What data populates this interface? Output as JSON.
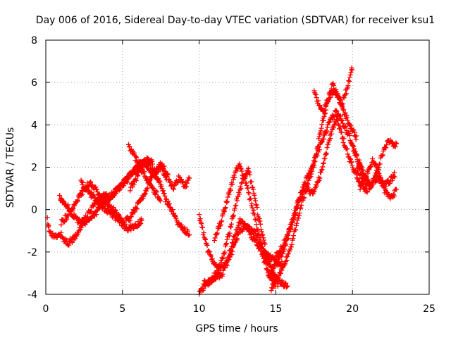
{
  "chart_data": {
    "type": "scatter",
    "title": "Day 006 of 2016, Sidereal Day-to-day VTEC variation (SDTVAR) for receiver ksu1",
    "xlabel": "GPS time / hours",
    "ylabel": "SDTVAR / TECUs",
    "xlim": [
      0,
      25
    ],
    "ylim": [
      -4,
      8
    ],
    "xticks": [
      0,
      5,
      10,
      15,
      20,
      25
    ],
    "yticks": [
      -4,
      -2,
      0,
      2,
      4,
      6,
      8
    ],
    "grid": true,
    "marker": "+",
    "color": "#ff0000",
    "series": [
      {
        "x": [
          0.1,
          0.3,
          0.6,
          1.0,
          1.4,
          1.8,
          2.2,
          2.6,
          3.0,
          3.4,
          3.8,
          4.2,
          4.6,
          5.0,
          5.4,
          5.8,
          6.2,
          6.6,
          7.0
        ],
        "y": [
          -0.5,
          -1.1,
          -1.3,
          -1.2,
          -1.6,
          -1.4,
          -0.9,
          -0.4,
          0.1,
          0.5,
          0.7,
          0.6,
          0.9,
          1.2,
          1.6,
          1.9,
          2.1,
          2.3,
          2.2
        ]
      },
      {
        "x": [
          0.9,
          1.3,
          1.7,
          2.1,
          2.5,
          2.9,
          3.3,
          3.7,
          4.1,
          4.5,
          4.9,
          5.3,
          5.7,
          6.1,
          6.5,
          7.0,
          7.5
        ],
        "y": [
          0.6,
          0.3,
          -0.2,
          -0.5,
          -0.6,
          -0.4,
          -0.1,
          0.2,
          0.5,
          0.8,
          1.1,
          1.4,
          1.7,
          2.0,
          1.6,
          1.0,
          0.4
        ]
      },
      {
        "x": [
          1.0,
          1.4,
          1.8,
          2.2,
          2.6,
          3.0,
          3.4,
          3.8,
          4.2,
          4.6,
          4.9,
          5.3,
          5.8,
          6.3
        ],
        "y": [
          -0.6,
          -0.3,
          0.1,
          0.6,
          1.1,
          1.2,
          0.8,
          0.4,
          0.1,
          -0.1,
          -0.6,
          -0.9,
          -0.8,
          -0.5
        ]
      },
      {
        "x": [
          2.3,
          2.7,
          3.1,
          3.5,
          3.9,
          4.3,
          4.7,
          5.1,
          5.5,
          5.9,
          6.3,
          6.7,
          7.1,
          7.5,
          7.9
        ],
        "y": [
          1.3,
          0.9,
          0.6,
          0.3,
          0.0,
          -0.2,
          -0.5,
          -0.6,
          -0.4,
          0.1,
          0.6,
          1.2,
          1.8,
          2.0,
          1.5
        ]
      },
      {
        "x": [
          5.4,
          5.8,
          6.2,
          6.6,
          7.0,
          7.4,
          7.8,
          8.2,
          8.6,
          9.0,
          9.4
        ],
        "y": [
          3.0,
          2.5,
          2.1,
          2.4,
          1.8,
          1.3,
          0.5,
          0.0,
          -0.6,
          -0.9,
          -1.2
        ]
      },
      {
        "x": [
          5.5,
          5.9,
          6.3,
          6.7,
          7.1,
          7.5,
          7.9,
          8.3,
          8.7,
          9.1,
          9.4
        ],
        "y": [
          1.0,
          1.5,
          2.2,
          2.0,
          1.6,
          2.2,
          1.7,
          1.0,
          1.5,
          1.1,
          1.6
        ]
      },
      {
        "x": [
          10.0,
          10.3,
          10.6,
          11.0,
          11.4,
          11.8,
          12.2,
          12.6,
          13.0,
          13.4,
          13.8,
          14.2,
          14.6,
          15.0
        ],
        "y": [
          -0.3,
          -1.2,
          -2.0,
          -2.6,
          -2.8,
          -2.6,
          -1.9,
          -1.0,
          -0.8,
          -0.9,
          -1.3,
          -2.3,
          -3.1,
          -3.6
        ]
      },
      {
        "x": [
          10.0,
          10.4,
          10.8,
          11.2,
          11.6,
          12.0,
          12.4,
          12.8,
          13.2,
          13.6,
          14.0,
          14.4,
          14.8,
          15.2
        ],
        "y": [
          -3.9,
          -3.6,
          -3.3,
          -2.9,
          -2.1,
          -1.0,
          0.3,
          1.3,
          1.9,
          0.6,
          -0.8,
          -2.1,
          -3.0,
          -3.6
        ]
      },
      {
        "x": [
          10.3,
          10.7,
          11.1,
          11.5,
          11.9,
          12.3,
          12.7,
          13.1,
          13.5,
          13.9,
          14.3,
          14.7,
          15.1,
          15.5
        ],
        "y": [
          -3.5,
          -3.4,
          -3.2,
          -3.0,
          -2.2,
          -1.3,
          -0.5,
          -0.9,
          -1.3,
          -1.8,
          -2.1,
          -2.3,
          -2.5,
          -2.6
        ]
      },
      {
        "x": [
          11.0,
          11.4,
          11.8,
          12.2,
          12.6,
          13.0,
          13.4,
          13.8,
          14.2,
          14.6,
          15.0,
          15.4,
          15.8
        ],
        "y": [
          -1.4,
          -0.6,
          0.4,
          1.4,
          2.2,
          1.4,
          0.3,
          -0.9,
          -2.0,
          -2.7,
          -3.2,
          -3.5,
          -3.6
        ]
      },
      {
        "x": [
          14.5,
          14.9,
          15.3,
          15.7,
          16.1,
          16.5,
          16.9,
          17.3,
          17.7,
          18.1,
          18.5,
          18.9,
          19.3,
          19.7,
          20.1,
          20.5,
          20.9
        ],
        "y": [
          -3.2,
          -2.6,
          -2.2,
          -1.5,
          -0.5,
          0.5,
          1.3,
          1.9,
          2.6,
          3.4,
          4.1,
          4.6,
          4.2,
          3.6,
          2.8,
          2.1,
          1.4
        ]
      },
      {
        "x": [
          14.7,
          15.1,
          15.5,
          15.9,
          16.3,
          16.7,
          17.1,
          17.5,
          17.9,
          18.3,
          18.7,
          19.1,
          19.5,
          19.9,
          20.3
        ],
        "y": [
          -3.7,
          -3.3,
          -2.7,
          -1.9,
          -0.9,
          0.4,
          1.2,
          2.2,
          3.6,
          4.9,
          5.6,
          5.3,
          4.5,
          3.9,
          3.3
        ]
      },
      {
        "x": [
          15.0,
          15.4,
          15.8,
          16.2,
          16.6,
          17.0,
          17.4,
          17.8,
          18.2,
          18.6,
          19.0,
          19.4,
          19.8,
          20.2,
          20.6,
          21.0
        ],
        "y": [
          -2.2,
          -1.8,
          -1.1,
          -0.3,
          0.6,
          1.0,
          0.8,
          1.4,
          2.4,
          3.6,
          4.3,
          3.3,
          2.4,
          1.7,
          1.1,
          0.9
        ]
      },
      {
        "x": [
          17.5,
          17.8,
          18.1,
          18.4,
          18.7,
          19.0,
          19.3,
          19.6,
          19.9,
          20.0
        ],
        "y": [
          5.5,
          5.0,
          4.6,
          5.2,
          5.9,
          5.4,
          4.9,
          5.6,
          6.4,
          6.8
        ]
      },
      {
        "x": [
          20.0,
          20.4,
          20.8,
          21.2,
          21.6,
          22.0,
          22.4,
          22.8
        ],
        "y": [
          3.0,
          2.2,
          1.6,
          1.2,
          1.5,
          1.2,
          1.3,
          1.7
        ]
      },
      {
        "x": [
          20.3,
          20.7,
          21.1,
          21.5,
          21.9,
          22.3,
          22.7,
          22.9
        ],
        "y": [
          2.0,
          1.4,
          1.0,
          1.6,
          2.5,
          3.2,
          3.1,
          3.1
        ]
      },
      {
        "x": [
          20.5,
          20.9,
          21.3,
          21.7,
          22.1,
          22.5,
          22.9
        ],
        "y": [
          1.0,
          1.6,
          2.3,
          1.8,
          0.9,
          0.5,
          1.0
        ]
      }
    ]
  }
}
